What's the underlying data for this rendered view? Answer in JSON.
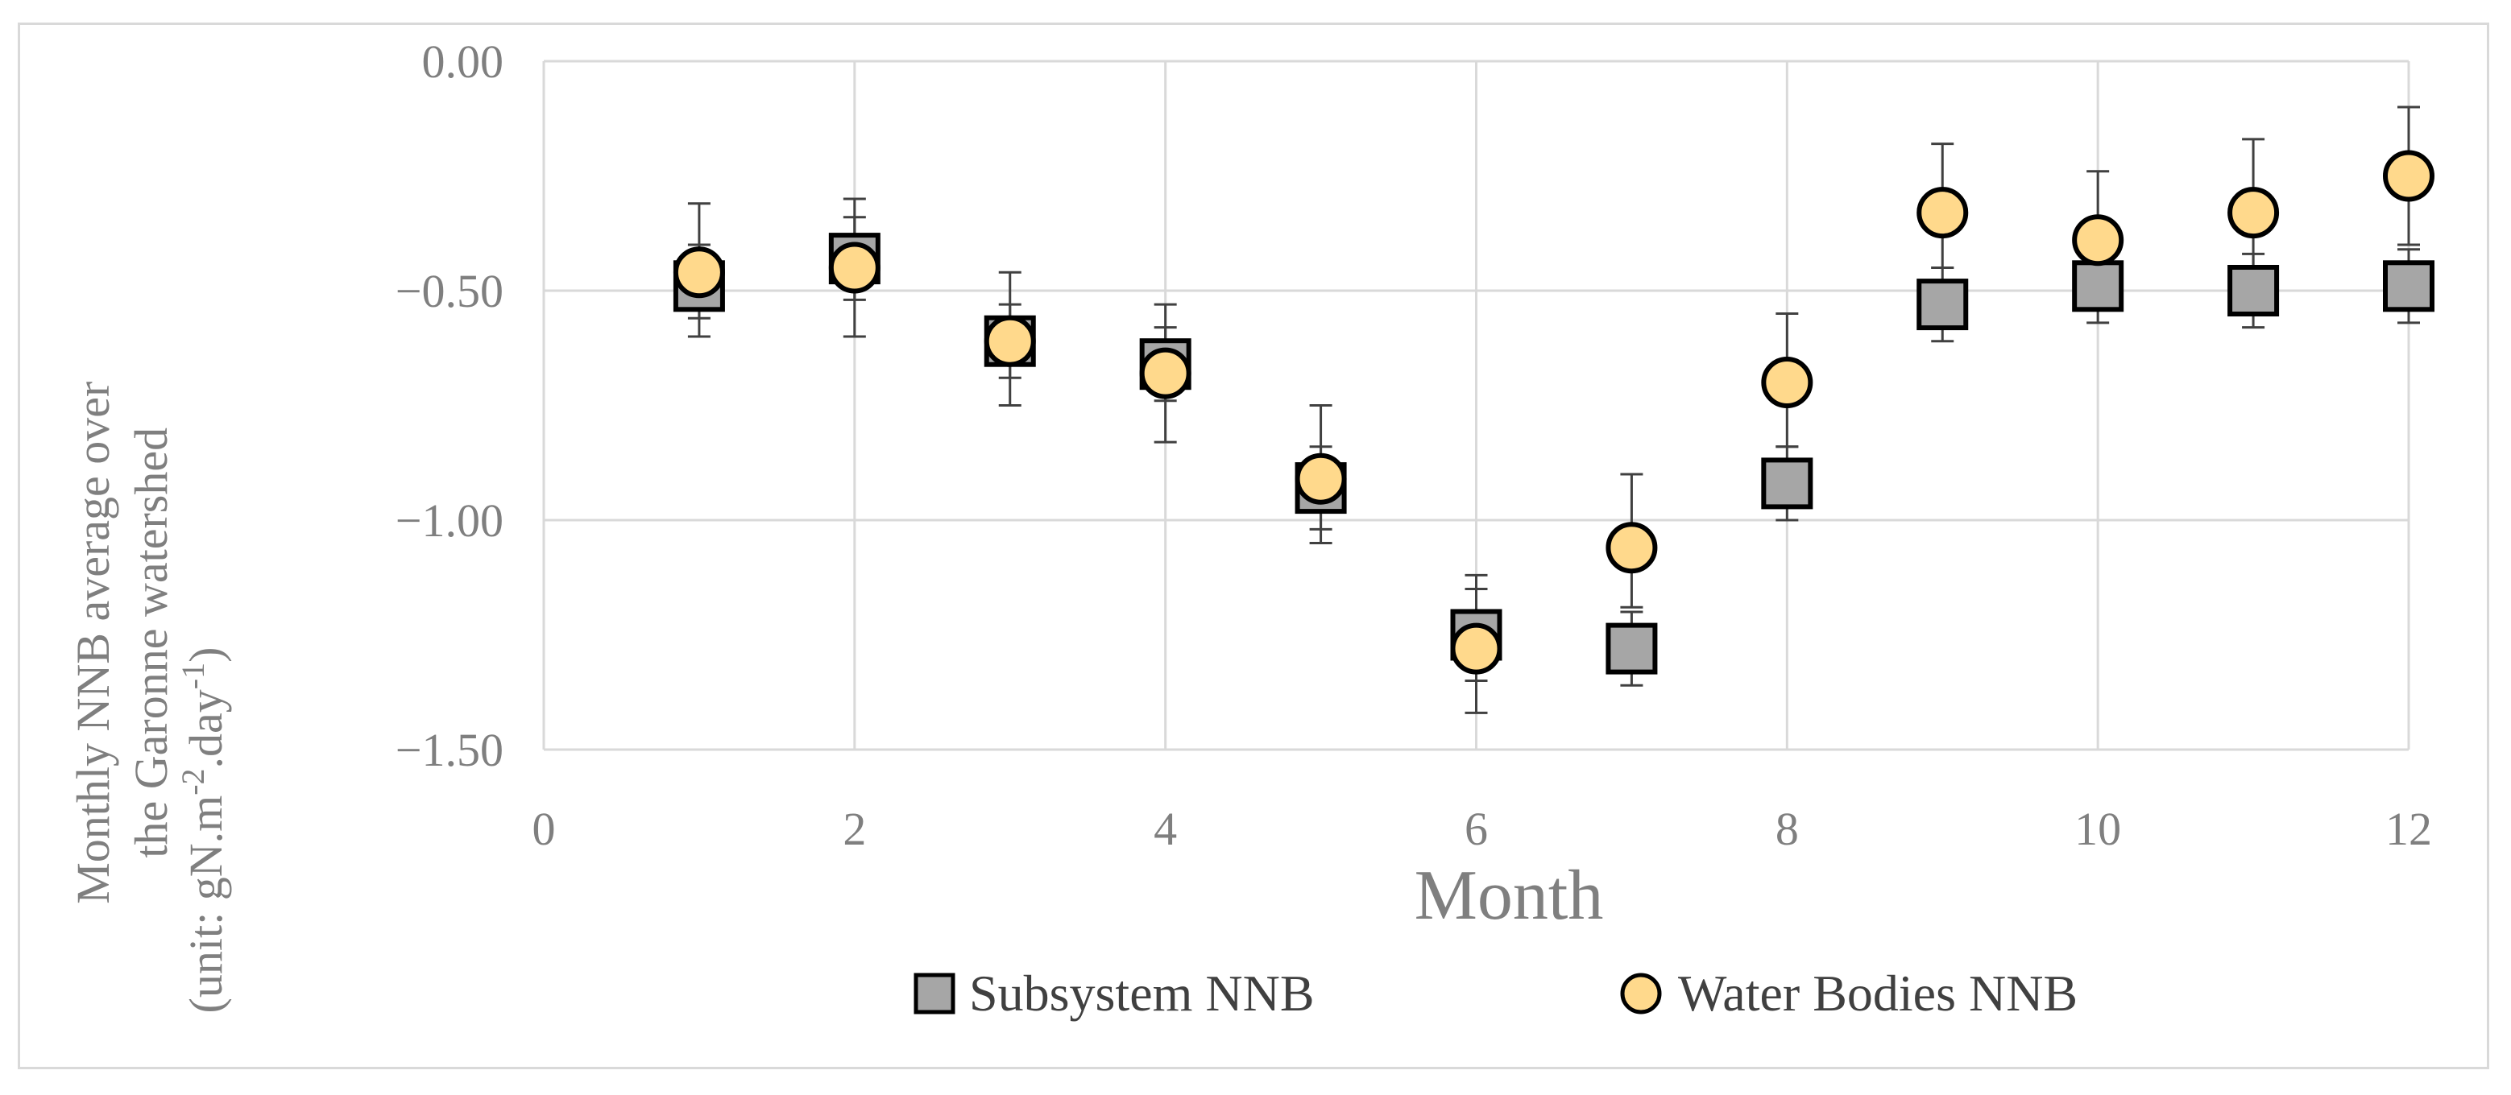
{
  "chart_data": {
    "type": "scatter",
    "xlabel": "Month",
    "ylabel_lines": [
      "Monthly NNB average over",
      "the Garonne watershed",
      "(unit: gN.m",
      "-2",
      ".day",
      "-1",
      ")"
    ],
    "xlim": [
      0,
      12
    ],
    "ylim": [
      -1.5,
      0.0
    ],
    "x_ticks": [
      "0",
      "2",
      "4",
      "6",
      "8",
      "10",
      "12"
    ],
    "x_tick_values": [
      0,
      2,
      4,
      6,
      8,
      10,
      12
    ],
    "y_ticks": [
      "0.00",
      "−0.50",
      "−1.00",
      "−1.50"
    ],
    "y_tick_values": [
      0,
      -0.5,
      -1.0,
      -1.5
    ],
    "grid": true,
    "legend_position": "bottom",
    "series": [
      {
        "name": "Subsystem NNB",
        "marker": "square",
        "color": "#a6a6a6",
        "x": [
          1,
          2,
          3,
          4,
          5,
          6,
          7,
          8,
          9,
          10,
          11,
          12
        ],
        "y": [
          -0.49,
          -0.43,
          -0.61,
          -0.66,
          -0.93,
          -1.25,
          -1.28,
          -0.92,
          -0.53,
          -0.49,
          -0.5,
          -0.49
        ],
        "err_low": [
          0.11,
          0.09,
          0.08,
          0.08,
          0.09,
          0.1,
          0.08,
          0.08,
          0.08,
          0.08,
          0.08,
          0.08
        ],
        "err_high": [
          0.09,
          0.09,
          0.08,
          0.08,
          0.09,
          0.1,
          0.08,
          0.08,
          0.08,
          0.08,
          0.08,
          0.08
        ]
      },
      {
        "name": "Water Bodies NNB",
        "marker": "circle",
        "color": "#ffd98c",
        "x": [
          1,
          2,
          3,
          4,
          5,
          6,
          7,
          8,
          9,
          10,
          11,
          12
        ],
        "y": [
          -0.46,
          -0.45,
          -0.61,
          -0.68,
          -0.91,
          -1.28,
          -1.06,
          -0.7,
          -0.33,
          -0.39,
          -0.33,
          -0.25
        ],
        "err_low": [
          0.1,
          0.15,
          0.14,
          0.15,
          0.14,
          0.14,
          0.13,
          0.14,
          0.12,
          0.15,
          0.12,
          0.15
        ],
        "err_high": [
          0.15,
          0.15,
          0.15,
          0.15,
          0.16,
          0.16,
          0.16,
          0.15,
          0.15,
          0.15,
          0.16,
          0.15
        ]
      }
    ]
  }
}
